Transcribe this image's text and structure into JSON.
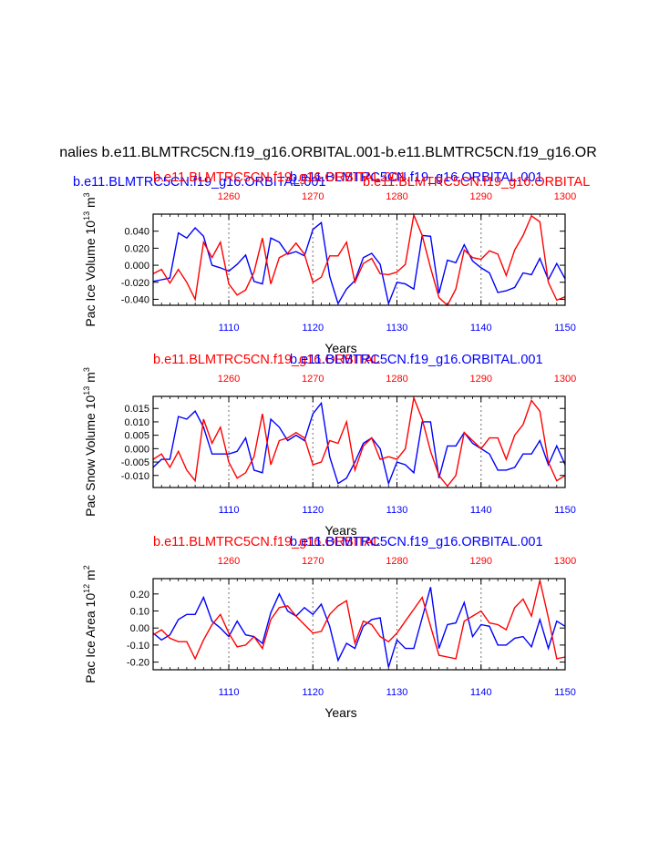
{
  "page": {
    "main_title": "nalies b.e11.BLMTRC5CN.f19_g16.ORBITAL.001-b.e11.BLMTRC5CN.f19_g16.OR"
  },
  "colors": {
    "blue": "#0000ff",
    "red": "#ff0000",
    "grid": "#888888",
    "axis": "#000000"
  },
  "chart_data": [
    {
      "type": "line",
      "ylabel": "Pac Ice Volume 10",
      "ylabel_exp": "13",
      "ylabel_unit": " m",
      "ylabel_unit_exp": "3",
      "xlabel": "Years",
      "title_left": "b.e11.BLMTRC5CN.f19_g16.ORBITAL.001",
      "title_center": "b.e11.BLMTRC5CN.f19_g16.ORBITAL.001",
      "title_right": "b.e11.BLMTRC5CN.f19_g16.ORBITAL",
      "title_right_blue_overlap": "b.e11.BLMTRC5CN.f19_g16.ORBITAL.001",
      "ylim": [
        -0.047,
        0.06
      ],
      "yticks": [
        -0.04,
        -0.02,
        0.0,
        0.02,
        0.04
      ],
      "ytick_labels": [
        "-0.040",
        "-0.020",
        "0.000",
        "0.020",
        "0.040"
      ],
      "bottom_xlim": [
        1101,
        1150
      ],
      "bottom_xticks": [
        1110,
        1120,
        1130,
        1140,
        1150
      ],
      "top_xlim": [
        1251,
        1300
      ],
      "top_xticks": [
        1260,
        1270,
        1280,
        1290,
        1300
      ],
      "series": [
        {
          "name": "b.e11.BLMTRC5CN.f19_g16.ORBITAL.001",
          "color": "blue",
          "x": [
            1101,
            1102,
            1103,
            1104,
            1105,
            1106,
            1107,
            1108,
            1109,
            1110,
            1111,
            1112,
            1113,
            1114,
            1115,
            1116,
            1117,
            1118,
            1119,
            1120,
            1121,
            1122,
            1123,
            1124,
            1125,
            1126,
            1127,
            1128,
            1129,
            1130,
            1131,
            1132,
            1133,
            1134,
            1135,
            1136,
            1137,
            1138,
            1139,
            1140,
            1141,
            1142,
            1143,
            1144,
            1145,
            1146,
            1147,
            1148,
            1149,
            1150
          ],
          "values": [
            -0.019,
            -0.017,
            -0.015,
            0.038,
            0.032,
            0.044,
            0.034,
            0.0,
            -0.003,
            -0.007,
            0.001,
            0.012,
            -0.019,
            -0.022,
            0.032,
            0.027,
            0.013,
            0.016,
            0.011,
            0.042,
            0.05,
            -0.013,
            -0.045,
            -0.028,
            -0.018,
            0.009,
            0.014,
            0.001,
            -0.045,
            -0.02,
            -0.022,
            -0.028,
            0.035,
            0.034,
            -0.033,
            0.006,
            0.003,
            0.024,
            0.005,
            -0.003,
            -0.009,
            -0.032,
            -0.03,
            -0.026,
            -0.009,
            -0.011,
            0.008,
            -0.017,
            0.002,
            -0.016
          ]
        },
        {
          "name": "b.e11.BLMTRC5CN.f19_g16.ORBITAL",
          "color": "red",
          "x": [
            1101,
            1102,
            1103,
            1104,
            1105,
            1106,
            1107,
            1108,
            1109,
            1110,
            1111,
            1112,
            1113,
            1114,
            1115,
            1116,
            1117,
            1118,
            1119,
            1120,
            1121,
            1122,
            1123,
            1124,
            1125,
            1126,
            1127,
            1128,
            1129,
            1130,
            1131,
            1132,
            1133,
            1134,
            1135,
            1136,
            1137,
            1138,
            1139,
            1140,
            1141,
            1142,
            1143,
            1144,
            1145,
            1146,
            1147,
            1148,
            1149,
            1150
          ],
          "values": [
            -0.01,
            -0.005,
            -0.021,
            -0.005,
            -0.02,
            -0.04,
            0.027,
            0.009,
            0.027,
            -0.022,
            -0.035,
            -0.029,
            -0.008,
            0.032,
            -0.022,
            0.009,
            0.014,
            0.026,
            0.013,
            -0.02,
            -0.014,
            0.011,
            0.011,
            0.027,
            -0.02,
            0.002,
            0.008,
            -0.01,
            -0.011,
            -0.008,
            0.001,
            0.059,
            0.035,
            -0.003,
            -0.038,
            -0.047,
            -0.028,
            0.018,
            0.009,
            0.007,
            0.017,
            0.013,
            -0.012,
            0.018,
            0.035,
            0.058,
            0.051,
            -0.02,
            -0.041,
            -0.037
          ]
        }
      ]
    },
    {
      "type": "line",
      "ylabel": "Pac Snow Volume 10",
      "ylabel_exp": "13",
      "ylabel_unit": " m",
      "ylabel_unit_exp": "3",
      "xlabel": "Years",
      "title_left": "b.e11.BLMTRC5CN.f19_g16.ORBITAL",
      "title_center": "b.e11.BLMTRC5CN.f19_g16.ORBITAL.001",
      "ylim": [
        -0.0145,
        0.0195
      ],
      "yticks": [
        -0.01,
        -0.005,
        0.0,
        0.005,
        0.01,
        0.015
      ],
      "ytick_labels": [
        "-0.010",
        "-0.005",
        "0.000",
        "0.005",
        "0.010",
        "0.015"
      ],
      "bottom_xlim": [
        1101,
        1150
      ],
      "bottom_xticks": [
        1110,
        1120,
        1130,
        1140,
        1150
      ],
      "top_xlim": [
        1251,
        1300
      ],
      "top_xticks": [
        1260,
        1270,
        1280,
        1290,
        1300
      ],
      "series": [
        {
          "name": "b.e11.BLMTRC5CN.f19_g16.ORBITAL.001",
          "color": "blue",
          "x": [
            1101,
            1102,
            1103,
            1104,
            1105,
            1106,
            1107,
            1108,
            1109,
            1110,
            1111,
            1112,
            1113,
            1114,
            1115,
            1116,
            1117,
            1118,
            1119,
            1120,
            1121,
            1122,
            1123,
            1124,
            1125,
            1126,
            1127,
            1128,
            1129,
            1130,
            1131,
            1132,
            1133,
            1134,
            1135,
            1136,
            1137,
            1138,
            1139,
            1140,
            1141,
            1142,
            1143,
            1144,
            1145,
            1146,
            1147,
            1148,
            1149,
            1150
          ],
          "values": [
            -0.007,
            -0.004,
            -0.004,
            0.012,
            0.011,
            0.014,
            0.008,
            -0.002,
            -0.002,
            -0.002,
            -0.001,
            0.004,
            -0.008,
            -0.009,
            0.011,
            0.008,
            0.003,
            0.005,
            0.003,
            0.013,
            0.017,
            -0.003,
            -0.013,
            -0.011,
            -0.005,
            0.002,
            0.004,
            0.0,
            -0.013,
            -0.005,
            -0.006,
            -0.009,
            0.01,
            0.01,
            -0.011,
            0.001,
            0.001,
            0.006,
            0.002,
            0.0,
            -0.002,
            -0.008,
            -0.008,
            -0.007,
            -0.002,
            -0.002,
            0.003,
            -0.006,
            0.001,
            -0.006
          ]
        },
        {
          "name": "b.e11.BLMTRC5CN.f19_g16.ORBITAL",
          "color": "red",
          "x": [
            1101,
            1102,
            1103,
            1104,
            1105,
            1106,
            1107,
            1108,
            1109,
            1110,
            1111,
            1112,
            1113,
            1114,
            1115,
            1116,
            1117,
            1118,
            1119,
            1120,
            1121,
            1122,
            1123,
            1124,
            1125,
            1126,
            1127,
            1128,
            1129,
            1130,
            1131,
            1132,
            1133,
            1134,
            1135,
            1136,
            1137,
            1138,
            1139,
            1140,
            1141,
            1142,
            1143,
            1144,
            1145,
            1146,
            1147,
            1148,
            1149,
            1150
          ],
          "values": [
            -0.004,
            -0.002,
            -0.007,
            -0.001,
            -0.008,
            -0.012,
            0.011,
            0.002,
            0.008,
            -0.005,
            -0.011,
            -0.009,
            -0.003,
            0.013,
            -0.006,
            0.003,
            0.004,
            0.006,
            0.004,
            -0.006,
            -0.005,
            0.003,
            0.002,
            0.01,
            -0.008,
            0.001,
            0.004,
            -0.004,
            -0.003,
            -0.004,
            0.0,
            0.019,
            0.011,
            -0.001,
            -0.01,
            -0.014,
            -0.01,
            0.006,
            0.003,
            0.0,
            0.004,
            0.004,
            -0.004,
            0.005,
            0.009,
            0.018,
            0.014,
            -0.005,
            -0.012,
            -0.01
          ]
        }
      ]
    },
    {
      "type": "line",
      "ylabel": "Pac Ice Area 10",
      "ylabel_exp": "12",
      "ylabel_unit": " m",
      "ylabel_unit_exp": "2",
      "xlabel": "Years",
      "title_left": "b.e11.BLMTRC5CN.f19_g16.ORBITAL",
      "title_center": "b.e11.BLMTRC5CN.f19_g16.ORBITAL.001",
      "ylim": [
        -0.245,
        0.29
      ],
      "yticks": [
        -0.2,
        -0.1,
        0.0,
        0.1,
        0.2
      ],
      "ytick_labels": [
        "-0.20",
        "-0.10",
        "0.00",
        "0.10",
        "0.20"
      ],
      "bottom_xlim": [
        1101,
        1150
      ],
      "bottom_xticks": [
        1110,
        1120,
        1130,
        1140,
        1150
      ],
      "top_xlim": [
        1251,
        1300
      ],
      "top_xticks": [
        1260,
        1270,
        1280,
        1290,
        1300
      ],
      "series": [
        {
          "name": "b.e11.BLMTRC5CN.f19_g16.ORBITAL.001",
          "color": "blue",
          "x": [
            1101,
            1102,
            1103,
            1104,
            1105,
            1106,
            1107,
            1108,
            1109,
            1110,
            1111,
            1112,
            1113,
            1114,
            1115,
            1116,
            1117,
            1118,
            1119,
            1120,
            1121,
            1122,
            1123,
            1124,
            1125,
            1126,
            1127,
            1128,
            1129,
            1130,
            1131,
            1132,
            1133,
            1134,
            1135,
            1136,
            1137,
            1138,
            1139,
            1140,
            1141,
            1142,
            1143,
            1144,
            1145,
            1146,
            1147,
            1148,
            1149,
            1150
          ],
          "values": [
            -0.03,
            -0.07,
            -0.04,
            0.05,
            0.08,
            0.08,
            0.18,
            0.04,
            -0.0,
            -0.05,
            0.04,
            -0.04,
            -0.05,
            -0.09,
            0.09,
            0.2,
            0.1,
            0.07,
            0.12,
            0.08,
            0.14,
            0.01,
            -0.19,
            -0.09,
            -0.12,
            0.01,
            0.05,
            0.06,
            -0.23,
            -0.07,
            -0.12,
            -0.12,
            0.06,
            0.24,
            -0.12,
            0.02,
            0.03,
            0.15,
            -0.05,
            0.02,
            0.01,
            -0.1,
            -0.1,
            -0.06,
            -0.05,
            -0.11,
            0.05,
            -0.12,
            0.04,
            0.01
          ]
        },
        {
          "name": "b.e11.BLMTRC5CN.f19_g16.ORBITAL",
          "color": "red",
          "x": [
            1101,
            1102,
            1103,
            1104,
            1105,
            1106,
            1107,
            1108,
            1109,
            1110,
            1111,
            1112,
            1113,
            1114,
            1115,
            1116,
            1117,
            1118,
            1119,
            1120,
            1121,
            1122,
            1123,
            1124,
            1125,
            1126,
            1127,
            1128,
            1129,
            1130,
            1131,
            1132,
            1133,
            1134,
            1135,
            1136,
            1137,
            1138,
            1139,
            1140,
            1141,
            1142,
            1143,
            1144,
            1145,
            1146,
            1147,
            1148,
            1149,
            1150
          ],
          "values": [
            -0.04,
            -0.01,
            -0.06,
            -0.08,
            -0.08,
            -0.18,
            -0.07,
            0.02,
            0.08,
            -0.03,
            -0.11,
            -0.1,
            -0.05,
            -0.12,
            0.05,
            0.12,
            0.13,
            0.07,
            0.02,
            -0.03,
            -0.02,
            0.08,
            0.13,
            0.16,
            -0.09,
            0.04,
            0.02,
            -0.05,
            -0.08,
            -0.03,
            0.04,
            0.11,
            0.18,
            0.01,
            -0.16,
            -0.17,
            -0.18,
            0.04,
            0.07,
            0.1,
            0.03,
            0.02,
            -0.01,
            0.12,
            0.17,
            0.07,
            0.28,
            0.06,
            -0.18,
            -0.17
          ]
        }
      ]
    }
  ]
}
